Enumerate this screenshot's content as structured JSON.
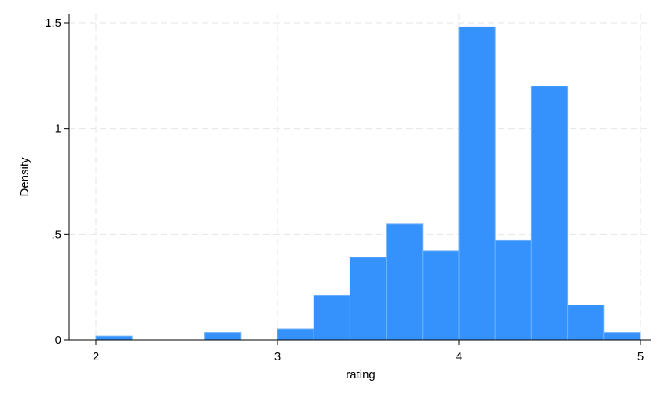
{
  "chart_data": {
    "type": "bar",
    "subtype": "histogram",
    "xlabel": "rating",
    "ylabel": "Density",
    "xlim": [
      1.95,
      5.05
    ],
    "ylim": [
      0,
      1.5
    ],
    "x_ticks": [
      {
        "value": 2,
        "label": "2"
      },
      {
        "value": 3,
        "label": "3"
      },
      {
        "value": 4,
        "label": "4"
      },
      {
        "value": 5,
        "label": "5"
      }
    ],
    "y_ticks": [
      {
        "value": 0,
        "label": "0"
      },
      {
        "value": 0.5,
        "label": ".5"
      },
      {
        "value": 1,
        "label": "1"
      },
      {
        "value": 1.5,
        "label": "1.5"
      }
    ],
    "grid": true,
    "bins": [
      {
        "x0": 2.0,
        "x1": 2.2,
        "density": 0.018
      },
      {
        "x0": 2.6,
        "x1": 2.8,
        "density": 0.035
      },
      {
        "x0": 3.0,
        "x1": 3.2,
        "density": 0.052
      },
      {
        "x0": 3.2,
        "x1": 3.4,
        "density": 0.21
      },
      {
        "x0": 3.4,
        "x1": 3.6,
        "density": 0.39
      },
      {
        "x0": 3.6,
        "x1": 3.8,
        "density": 0.55
      },
      {
        "x0": 3.8,
        "x1": 4.0,
        "density": 0.42
      },
      {
        "x0": 4.0,
        "x1": 4.2,
        "density": 1.48
      },
      {
        "x0": 4.2,
        "x1": 4.4,
        "density": 0.47
      },
      {
        "x0": 4.4,
        "x1": 4.6,
        "density": 1.2
      },
      {
        "x0": 4.6,
        "x1": 4.8,
        "density": 0.165
      },
      {
        "x0": 4.8,
        "x1": 5.0,
        "density": 0.035
      }
    ],
    "colors": {
      "bar_fill": "#3592fd",
      "bar_edge": "#6fb2ff",
      "grid": "#e6e6e6",
      "axis": "#000000"
    }
  }
}
